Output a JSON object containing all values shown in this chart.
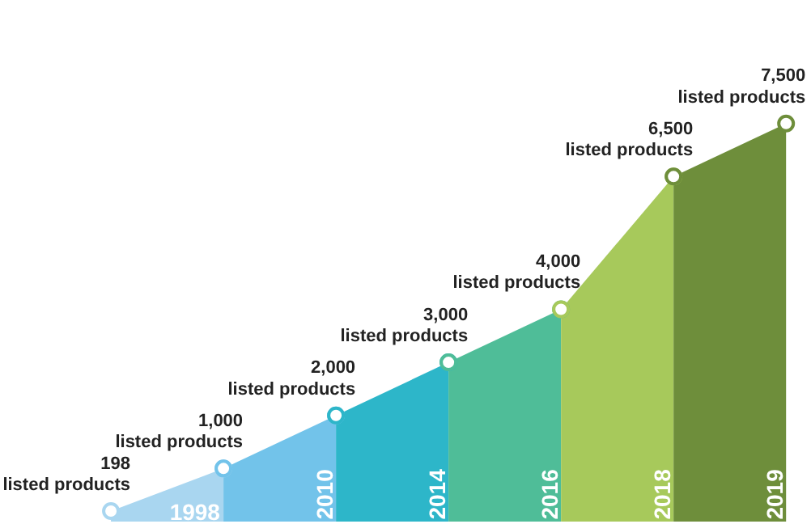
{
  "chart_data": {
    "type": "area",
    "categories": [
      null,
      "1998",
      "2010",
      "2014",
      "2016",
      "2018",
      "2019"
    ],
    "series": [
      {
        "color": "#a9d6f0",
        "values": [
          198,
          1000,
          null,
          null,
          null,
          null,
          null
        ],
        "value_labels": [
          "198\nlisted products",
          "1,000\nlisted products",
          null,
          null,
          null,
          null,
          null
        ]
      },
      {
        "color": "#72c3ea",
        "values": [
          null,
          1000,
          2000,
          null,
          null,
          null,
          null
        ],
        "value_labels": [
          null,
          null,
          "2,000\nlisted products",
          null,
          null,
          null,
          null
        ]
      },
      {
        "color": "#2db6c9",
        "values": [
          null,
          null,
          2000,
          3000,
          null,
          null,
          null
        ],
        "value_labels": [
          null,
          null,
          null,
          "3,000\nlisted products",
          null,
          null,
          null
        ]
      },
      {
        "color": "#4fbd98",
        "values": [
          null,
          null,
          null,
          3000,
          4000,
          null,
          null
        ],
        "value_labels": [
          null,
          null,
          null,
          null,
          "4,000\nlisted products",
          null,
          null
        ]
      },
      {
        "color": "#a7c95b",
        "values": [
          null,
          null,
          null,
          null,
          4000,
          6500,
          null
        ],
        "value_labels": [
          null,
          null,
          null,
          null,
          null,
          "6,500\nlisted products",
          null
        ]
      },
      {
        "color": "#6e8e3b",
        "values": [
          null,
          null,
          null,
          null,
          null,
          6500,
          7500
        ],
        "value_labels": [
          null,
          null,
          null,
          null,
          null,
          null,
          "7,500\nlisted products"
        ]
      }
    ],
    "marker": "circle"
  }
}
